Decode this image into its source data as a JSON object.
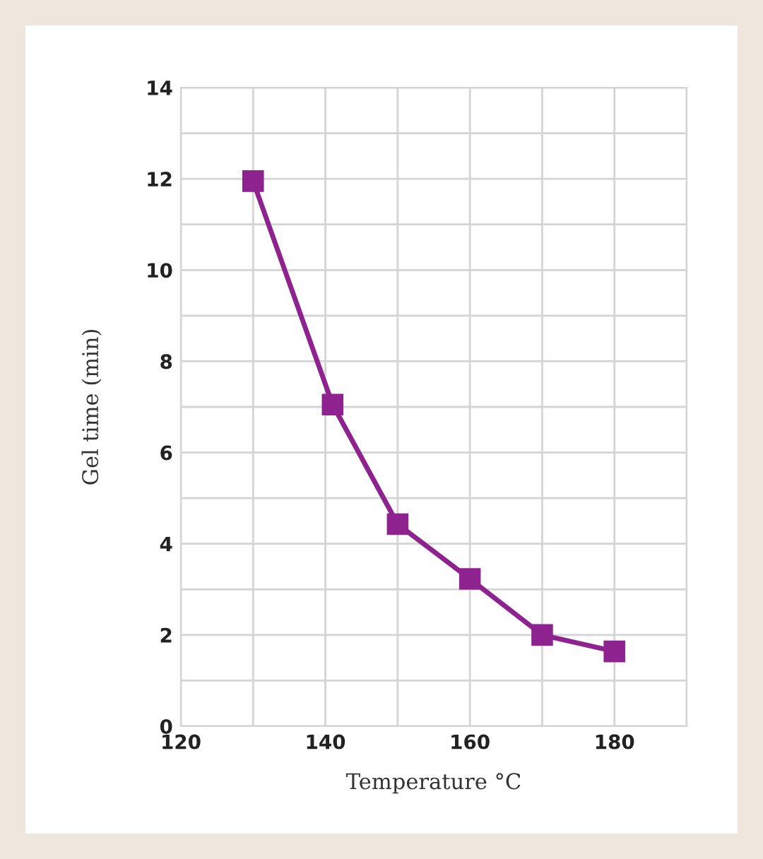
{
  "chart_data": {
    "type": "line",
    "xlabel": "Temperature °C",
    "ylabel": "Gel time (min)",
    "x": [
      130,
      141,
      150,
      160,
      170,
      180
    ],
    "series": [
      {
        "color": "#8e2390",
        "values": [
          11.95,
          7.05,
          4.43,
          3.23,
          2.0,
          1.64
        ]
      }
    ],
    "xlim": [
      120,
      190
    ],
    "xticks": [
      120,
      {
        "value": 130,
        "label": null
      },
      140,
      {
        "value": 150,
        "label": null
      },
      160,
      {
        "value": 170,
        "label": null
      },
      180,
      {
        "value": 190,
        "label": null
      }
    ],
    "ylim": [
      0,
      14
    ],
    "yticks": [
      0,
      {
        "value": 1,
        "label": null
      },
      2,
      {
        "value": 3,
        "label": null
      },
      4,
      {
        "value": 5,
        "label": null
      },
      6,
      {
        "value": 7,
        "label": null
      },
      8,
      {
        "value": 9,
        "label": null
      },
      10,
      {
        "value": 11,
        "label": null
      },
      12,
      {
        "value": 13,
        "label": null
      },
      14
    ],
    "grid": true,
    "marker": "square",
    "line_style": "solid",
    "legend": false
  }
}
